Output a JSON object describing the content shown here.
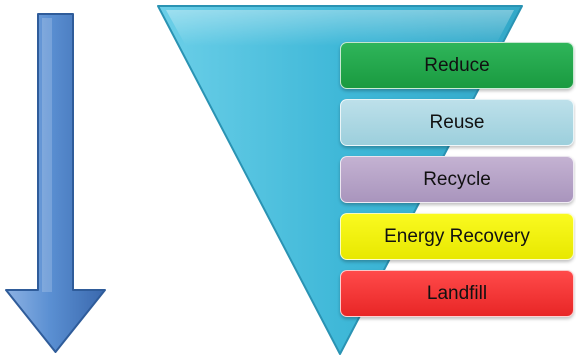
{
  "hierarchy": {
    "tiers": [
      {
        "label": "Reduce"
      },
      {
        "label": "Reuse"
      },
      {
        "label": "Recycle"
      },
      {
        "label": "Energy Recovery"
      },
      {
        "label": "Landfill"
      }
    ]
  },
  "colors": {
    "arrow": "#4a7fc6",
    "funnel": "#3fb8d8",
    "reduce": "#1fa646",
    "reuse": "#aed7e3",
    "recycle": "#b5a2c8",
    "energy_recovery": "#f2f20a",
    "landfill": "#f03434"
  }
}
